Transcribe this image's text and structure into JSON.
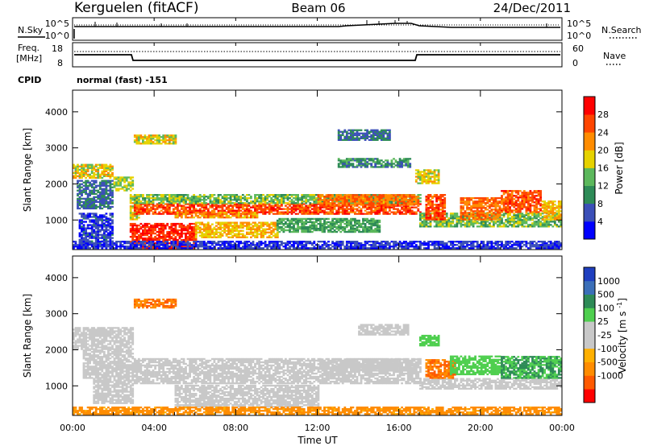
{
  "header": {
    "station": "Kerguelen (fitACF)",
    "beam": "Beam 06",
    "date": "24/Dec/2011"
  },
  "status_panels": {
    "nsky_label": "N.Sky",
    "nsearch_label": "N.Search",
    "noise_tick_top": "10^5",
    "noise_tick_bottom": "10^0",
    "freq_label_line1": "Freq.",
    "freq_label_line2": "[MHz]",
    "freq_ticks": [
      "18",
      "8"
    ],
    "nave_label": "Nave",
    "nave_ticks": [
      "60",
      "0"
    ],
    "cpid_label": "CPID",
    "cpid_value": "normal (fast) -151"
  },
  "colors": {
    "power_scale": [
      "#0000ff",
      "#3b4fb8",
      "#2e8b57",
      "#5cb85c",
      "#e6d200",
      "#ff8c00",
      "#ff4500",
      "#ff0000"
    ],
    "velocity_scale": [
      "#ff0000",
      "#ff5a00",
      "#ff8c00",
      "#ffb000",
      "#c8c8c8",
      "#c8c8c8",
      "#4fcf4f",
      "#2e8b57",
      "#3b6fb8",
      "#1f3fbf"
    ],
    "ground_scatter": "#c8c8c8"
  },
  "chart_data": [
    {
      "type": "heatmap",
      "name_hint": "power",
      "xlabel": "",
      "ylabel": "Slant Range [km]",
      "xlim": [
        0,
        24
      ],
      "ylim": [
        180,
        4600
      ],
      "yticks": [
        1000,
        2000,
        3000,
        4000
      ],
      "colorbar_label": "Power [dB]",
      "colorbar_ticks": [
        "4",
        "8",
        "12",
        "16",
        "20",
        "24",
        "28"
      ],
      "colorbar_range": [
        0,
        32
      ],
      "regions": [
        {
          "t": [
            0.0,
            2.0
          ],
          "r": [
            2150,
            2550
          ],
          "v": 18
        },
        {
          "t": [
            0.2,
            2.0
          ],
          "r": [
            1300,
            2100
          ],
          "v": 8
        },
        {
          "t": [
            0.3,
            2.0
          ],
          "r": [
            300,
            1200
          ],
          "v": 5
        },
        {
          "t": [
            2.0,
            3.0
          ],
          "r": [
            1800,
            2200
          ],
          "v": 16
        },
        {
          "t": [
            2.8,
            3.3
          ],
          "r": [
            1000,
            1700
          ],
          "v": 18
        },
        {
          "t": [
            2.8,
            6.0
          ],
          "r": [
            200,
            900
          ],
          "v": 28
        },
        {
          "t": [
            3.0,
            5.0
          ],
          "r": [
            3100,
            3350
          ],
          "v": 18
        },
        {
          "t": [
            3.0,
            17.0
          ],
          "r": [
            1150,
            1450
          ],
          "v": 26
        },
        {
          "t": [
            3.0,
            17.0
          ],
          "r": [
            1450,
            1700
          ],
          "v": 14
        },
        {
          "t": [
            5.0,
            9.0
          ],
          "r": [
            1050,
            1200
          ],
          "v": 22
        },
        {
          "t": [
            6.0,
            10.0
          ],
          "r": [
            500,
            950
          ],
          "v": 20
        },
        {
          "t": [
            10.0,
            15.0
          ],
          "r": [
            650,
            1050
          ],
          "v": 12
        },
        {
          "t": [
            12.0,
            17.0
          ],
          "r": [
            1400,
            1700
          ],
          "v": 24
        },
        {
          "t": [
            13.0,
            15.5
          ],
          "r": [
            3200,
            3500
          ],
          "v": 8
        },
        {
          "t": [
            13.0,
            16.5
          ],
          "r": [
            2450,
            2700
          ],
          "v": 10
        },
        {
          "t": [
            16.8,
            18.0
          ],
          "r": [
            2000,
            2400
          ],
          "v": 18
        },
        {
          "t": [
            17.0,
            24.0
          ],
          "r": [
            800,
            1200
          ],
          "v": 14
        },
        {
          "t": [
            17.3,
            18.3
          ],
          "r": [
            1000,
            1700
          ],
          "v": 26
        },
        {
          "t": [
            19.0,
            21.0
          ],
          "r": [
            1000,
            1600
          ],
          "v": 24
        },
        {
          "t": [
            21.0,
            23.0
          ],
          "r": [
            1200,
            1800
          ],
          "v": 26
        },
        {
          "t": [
            23.0,
            24.0
          ],
          "r": [
            1000,
            1500
          ],
          "v": 20
        },
        {
          "t": [
            0.0,
            24.0
          ],
          "r": [
            200,
            400
          ],
          "v": 4
        }
      ]
    },
    {
      "type": "heatmap",
      "name_hint": "velocity",
      "xlabel": "Time UT",
      "ylabel": "Slant Range [km]",
      "xlim": [
        0,
        24
      ],
      "ylim": [
        180,
        4600
      ],
      "yticks": [
        1000,
        2000,
        3000,
        4000
      ],
      "xticks": [
        "00:00",
        "04:00",
        "08:00",
        "12:00",
        "16:00",
        "20:00",
        "00:00"
      ],
      "colorbar_label": "Velocity [m s^-1]",
      "colorbar_ticks": [
        "1000",
        "500",
        "100",
        "25",
        "-25",
        "-100",
        "-500",
        "-1000"
      ],
      "regions": [
        {
          "t": [
            0.0,
            3.0
          ],
          "r": [
            2000,
            2600
          ],
          "v": 0
        },
        {
          "t": [
            0.5,
            3.0
          ],
          "r": [
            1200,
            2000
          ],
          "v": 0
        },
        {
          "t": [
            1.0,
            3.0
          ],
          "r": [
            500,
            1200
          ],
          "v": 0
        },
        {
          "t": [
            3.0,
            5.0
          ],
          "r": [
            3150,
            3400
          ],
          "v": -300
        },
        {
          "t": [
            3.0,
            17.0
          ],
          "r": [
            1050,
            1750
          ],
          "v": 0
        },
        {
          "t": [
            5.0,
            12.0
          ],
          "r": [
            400,
            1000
          ],
          "v": 0
        },
        {
          "t": [
            12.0,
            17.0
          ],
          "r": [
            1400,
            1750
          ],
          "v": 0
        },
        {
          "t": [
            14.0,
            16.5
          ],
          "r": [
            2400,
            2700
          ],
          "v": 0
        },
        {
          "t": [
            17.0,
            18.0
          ],
          "r": [
            2100,
            2400
          ],
          "v": 150
        },
        {
          "t": [
            17.0,
            24.0
          ],
          "r": [
            900,
            1200
          ],
          "v": 0
        },
        {
          "t": [
            17.3,
            18.8
          ],
          "r": [
            1200,
            1700
          ],
          "v": -300
        },
        {
          "t": [
            18.5,
            21.0
          ],
          "r": [
            1300,
            1800
          ],
          "v": 200
        },
        {
          "t": [
            21.0,
            24.0
          ],
          "r": [
            1200,
            1800
          ],
          "v": 300
        },
        {
          "t": [
            0.0,
            24.0
          ],
          "r": [
            200,
            400
          ],
          "v": -200
        }
      ]
    }
  ]
}
